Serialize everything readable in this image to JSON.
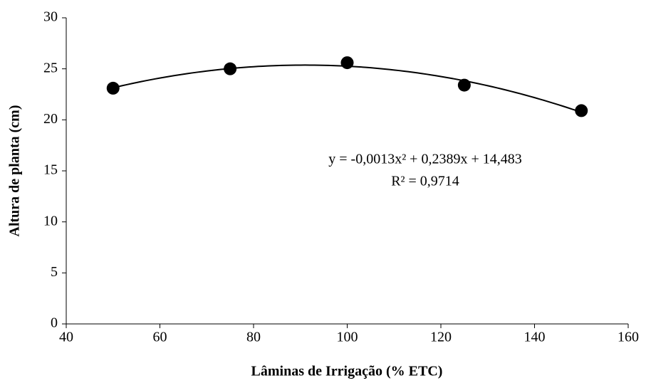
{
  "chart_data": {
    "type": "scatter",
    "x_label": "Lâminas de Irrigação (% ETC)",
    "y_label": "Altura de planta (cm)",
    "x": [
      50,
      75,
      100,
      125,
      150
    ],
    "values": [
      23.1,
      25.0,
      25.6,
      23.4,
      20.9
    ],
    "color": "#000000",
    "trendline": {
      "type": "polynomial",
      "order": 2,
      "color": "#000000"
    },
    "annotations": [
      "y = -0,0013x² + 0,2389x + 14,483",
      "R² = 0,9714"
    ],
    "xlim": [
      40,
      160
    ],
    "xticks": [
      40,
      60,
      80,
      100,
      120,
      140,
      160
    ],
    "ylim": [
      0,
      30
    ],
    "yticks": [
      0,
      5,
      10,
      15,
      20,
      25,
      30
    ],
    "grid": false
  }
}
